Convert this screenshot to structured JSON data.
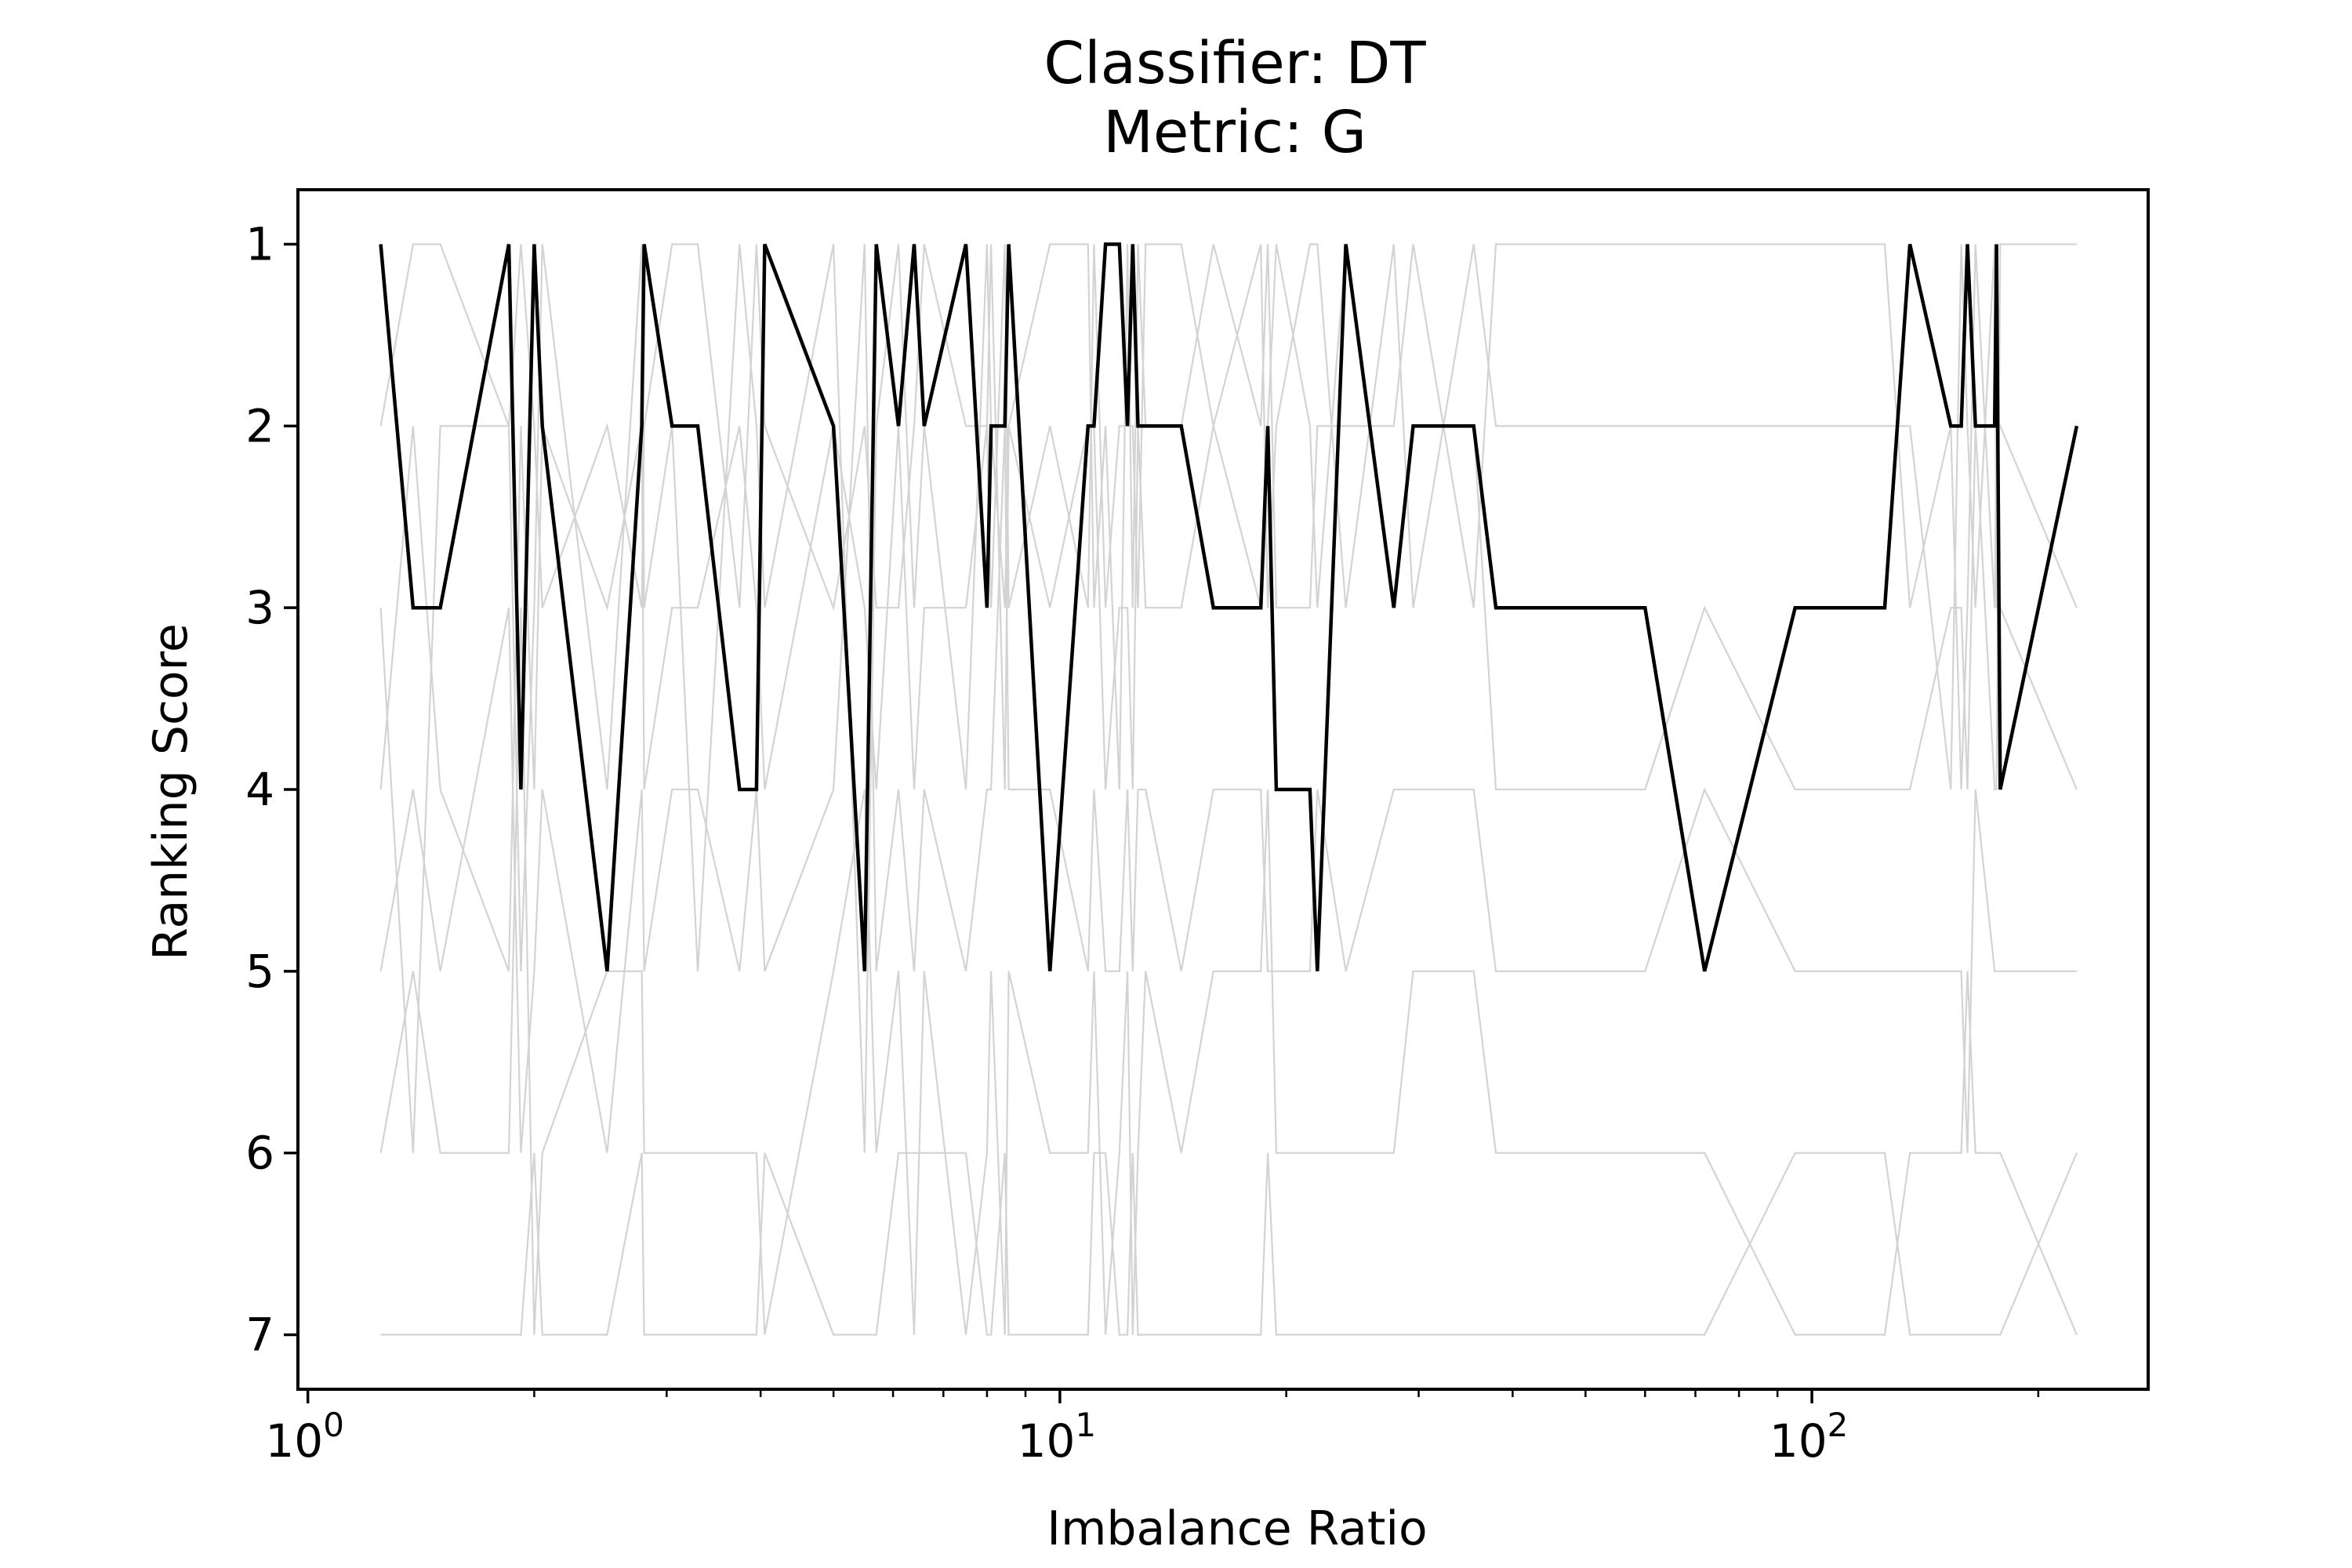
{
  "chart_data": {
    "type": "line",
    "title_line1": "Classifier: DT",
    "title_line2": "Metric: G",
    "xlabel": "Imbalance Ratio",
    "ylabel": "Ranking Score",
    "xscale": "log",
    "xlim": [
      0.97,
      280
    ],
    "ylim": [
      7.3,
      0.7
    ],
    "y_inverted": true,
    "x_tick_labels": [
      {
        "base": "10",
        "exp": "0",
        "value": 1
      },
      {
        "base": "10",
        "exp": "1",
        "value": 10
      },
      {
        "base": "10",
        "exp": "2",
        "value": 100
      }
    ],
    "y_ticks": [
      1,
      2,
      3,
      4,
      5,
      6,
      7
    ],
    "x": [
      1.25,
      1.38,
      1.5,
      1.85,
      1.92,
      2.0,
      2.05,
      2.5,
      2.78,
      2.8,
      3.05,
      3.3,
      3.75,
      3.95,
      4.05,
      5.0,
      5.5,
      5.7,
      6.1,
      6.4,
      6.6,
      7.5,
      8.0,
      8.1,
      8.45,
      8.55,
      9.7,
      10.9,
      11.1,
      11.5,
      12.0,
      12.3,
      12.5,
      12.7,
      13.0,
      14.5,
      16.0,
      18.5,
      18.9,
      19.4,
      21.5,
      22.0,
      24.0,
      27.8,
      29.5,
      35.5,
      38.0,
      60.0,
      72.0,
      95.0,
      125.0,
      135.0,
      153.0,
      158.0,
      161.0,
      165.0,
      175.0,
      176.0,
      178.0,
      225.0
    ],
    "background_color": "#d3d3d3",
    "series": [
      {
        "color": "#000000",
        "values": [
          1,
          3,
          3,
          1,
          4,
          1,
          2,
          5,
          2,
          1,
          2,
          2,
          4,
          4,
          1,
          2,
          5,
          1,
          2,
          1,
          2,
          1,
          3,
          2,
          2,
          1,
          5,
          2,
          2,
          1,
          1,
          2,
          1,
          2,
          2,
          2,
          3,
          3,
          2,
          4,
          4,
          5,
          1,
          3,
          2,
          2,
          3,
          3,
          5,
          3,
          3,
          1,
          2,
          2,
          1,
          2,
          2,
          1,
          4,
          2
        ]
      },
      {
        "color": "#d3d3d3",
        "values": [
          2,
          1,
          1,
          2,
          5,
          3,
          1,
          4,
          1,
          3,
          2,
          5,
          1,
          2,
          3,
          1,
          6,
          2,
          1,
          3,
          2,
          4,
          1,
          2,
          3,
          2,
          1,
          1,
          3,
          2,
          4,
          1,
          3,
          1,
          2,
          2,
          1,
          2,
          1,
          3,
          3,
          2,
          2,
          2,
          1,
          3,
          1,
          1,
          1,
          1,
          1,
          3,
          2,
          4,
          3,
          1,
          3,
          2,
          2,
          3
        ]
      },
      {
        "color": "#d3d3d3",
        "values": [
          3,
          6,
          2,
          2,
          1,
          2,
          3,
          2,
          3,
          2,
          1,
          1,
          3,
          1,
          2,
          3,
          2,
          3,
          3,
          2,
          1,
          2,
          2,
          3,
          1,
          3,
          2,
          3,
          1,
          3,
          2,
          2,
          2,
          3,
          1,
          1,
          2,
          1,
          3,
          2,
          1,
          1,
          3,
          1,
          3,
          1,
          2,
          2,
          2,
          2,
          2,
          2,
          4,
          1,
          2,
          3,
          1,
          3,
          3,
          4
        ]
      },
      {
        "color": "#d3d3d3",
        "values": [
          4,
          2,
          4,
          5,
          2,
          4,
          2,
          3,
          2,
          4,
          3,
          3,
          2,
          3,
          4,
          2,
          3,
          4,
          2,
          4,
          3,
          3,
          2,
          1,
          4,
          2,
          3,
          2,
          2,
          4,
          3,
          3,
          4,
          2,
          3,
          3,
          2,
          3,
          2,
          1,
          2,
          3,
          1,
          3,
          2,
          2,
          4,
          4,
          3,
          4,
          4,
          4,
          3,
          3,
          4,
          2,
          4,
          4,
          1,
          1
        ]
      },
      {
        "color": "#d3d3d3",
        "values": [
          5,
          4,
          5,
          3,
          6,
          5,
          4,
          6,
          4,
          5,
          4,
          4,
          5,
          4,
          5,
          4,
          1,
          5,
          4,
          5,
          4,
          5,
          4,
          4,
          2,
          4,
          4,
          5,
          4,
          5,
          5,
          4,
          5,
          4,
          4,
          5,
          4,
          4,
          5,
          5,
          5,
          4,
          5,
          4,
          4,
          4,
          5,
          5,
          4,
          5,
          5,
          5,
          5,
          5,
          6,
          4,
          5,
          5,
          5,
          5
        ]
      },
      {
        "color": "#d3d3d3",
        "values": [
          6,
          5,
          6,
          6,
          3,
          7,
          6,
          5,
          5,
          6,
          6,
          6,
          6,
          6,
          7,
          5,
          4,
          6,
          5,
          7,
          5,
          7,
          6,
          5,
          7,
          5,
          6,
          6,
          5,
          7,
          6,
          5,
          7,
          6,
          5,
          6,
          5,
          5,
          4,
          6,
          6,
          6,
          6,
          6,
          5,
          5,
          6,
          6,
          6,
          7,
          7,
          6,
          6,
          6,
          5,
          6,
          6,
          6,
          6,
          7
        ]
      },
      {
        "color": "#d3d3d3",
        "values": [
          7,
          7,
          7,
          7,
          7,
          6,
          7,
          7,
          6,
          7,
          7,
          7,
          7,
          7,
          6,
          7,
          7,
          7,
          6,
          6,
          6,
          6,
          7,
          7,
          6,
          7,
          7,
          7,
          6,
          6,
          7,
          7,
          6,
          7,
          7,
          7,
          7,
          7,
          6,
          7,
          7,
          7,
          7,
          7,
          7,
          7,
          7,
          7,
          7,
          6,
          6,
          7,
          7,
          7,
          7,
          7,
          7,
          7,
          7,
          6
        ]
      }
    ]
  }
}
